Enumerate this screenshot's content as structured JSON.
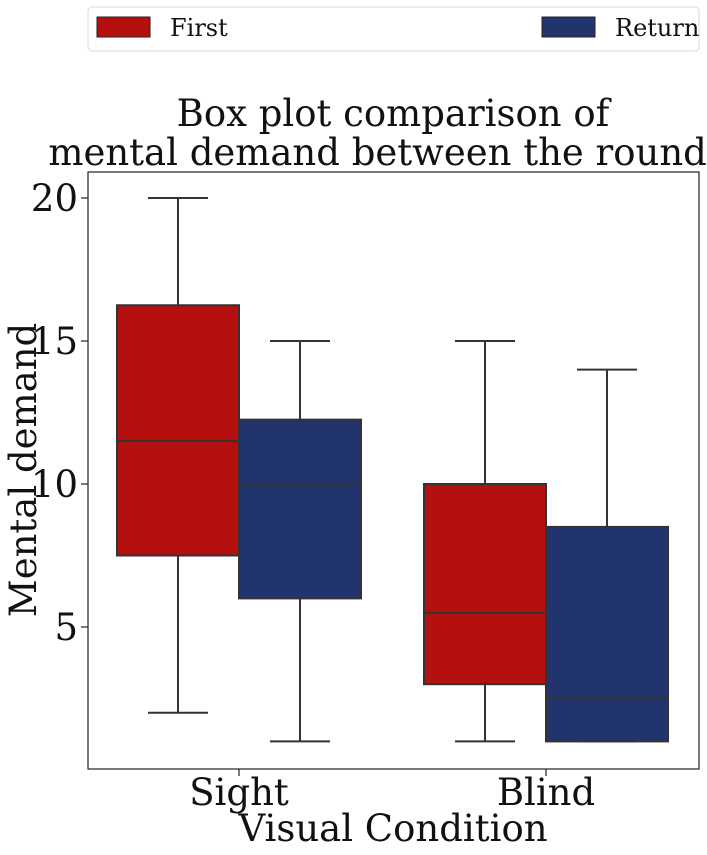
{
  "chart_data": {
    "type": "box",
    "title_lines": [
      "Box plot comparison of",
      "mental demand between the rounds."
    ],
    "xlabel": "Visual Condition",
    "ylabel": "Mental demand",
    "categories": [
      "Sight",
      "Blind"
    ],
    "ylim": [
      0,
      21
    ],
    "yticks": [
      5,
      10,
      15,
      20
    ],
    "legend_position": "top, above plot",
    "grid": false,
    "series": [
      {
        "name": "First",
        "color": "#B51010",
        "boxes": [
          {
            "category": "Sight",
            "whisker_low": 2,
            "q1": 7.5,
            "median": 11.5,
            "q3": 16.25,
            "whisker_high": 20
          },
          {
            "category": "Blind",
            "whisker_low": 1,
            "q1": 3,
            "median": 5.5,
            "q3": 10,
            "whisker_high": 15
          }
        ]
      },
      {
        "name": "Return",
        "color": "#21346E",
        "boxes": [
          {
            "category": "Sight",
            "whisker_low": 1,
            "q1": 6,
            "median": 10,
            "q3": 12.25,
            "whisker_high": 15
          },
          {
            "category": "Blind",
            "whisker_low": 1,
            "q1": 1,
            "median": 2.5,
            "q3": 8.5,
            "whisker_high": 14
          }
        ]
      }
    ]
  }
}
